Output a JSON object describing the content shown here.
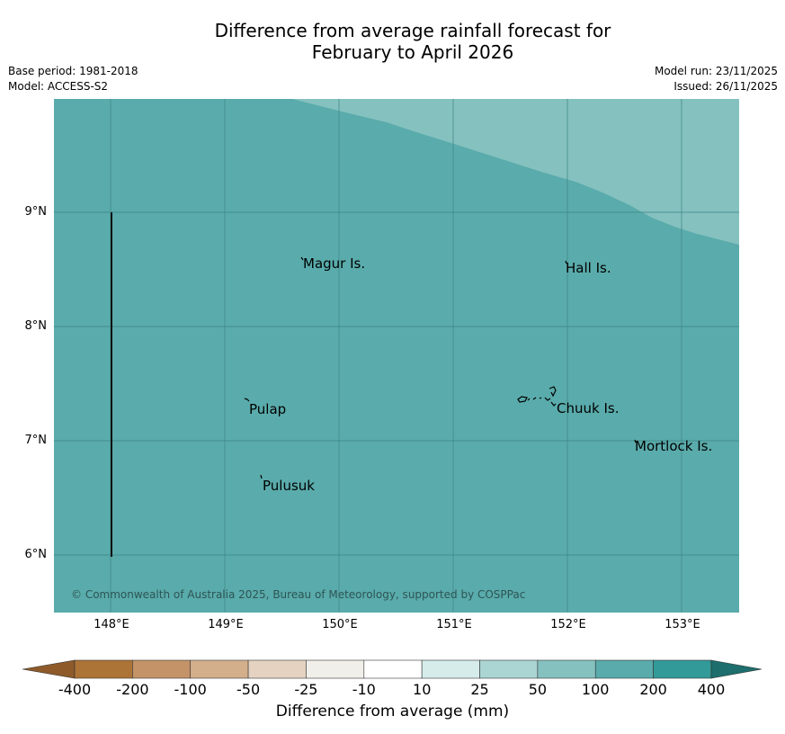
{
  "title": {
    "line1": "Difference from average rainfall forecast for",
    "line2": "February to April 2026"
  },
  "meta": {
    "base_period": "Base period: 1981-2018",
    "model": "Model: ACCESS-S2",
    "model_run": "Model run: 23/11/2025",
    "issued": "Issued: 26/11/2025"
  },
  "map": {
    "colors": {
      "background_class": "#5aabab",
      "upper_class": "#84c1bf",
      "gridline": "#3d8585",
      "coastline": "#000000"
    },
    "lat_labels": [
      "9°N",
      "8°N",
      "7°N",
      "6°N"
    ],
    "lon_labels": [
      "148°E",
      "149°E",
      "150°E",
      "151°E",
      "152°E",
      "153°E"
    ],
    "places": [
      "Magur Is.",
      "Hall Is.",
      "Pulap",
      "Chuuk Is.",
      "Mortlock Is.",
      "Pulusuk"
    ],
    "copyright": "© Commonwealth of Australia 2025, Bureau of Meteorology, supported by COSPPac"
  },
  "legend": {
    "label": "Difference from average (mm)",
    "ticks": [
      "-400",
      "-200",
      "-100",
      "-50",
      "-25",
      "-10",
      "10",
      "25",
      "50",
      "100",
      "200",
      "400"
    ],
    "colors": [
      "#ad7437",
      "#c49368",
      "#d3af8c",
      "#e5d2c0",
      "#f1efea",
      "#ffffff",
      "#d5ecea",
      "#abd5d3",
      "#84c1bf",
      "#5aabab",
      "#329a98"
    ],
    "under_color": "#8e5a2a",
    "over_color": "#1d6e6c"
  }
}
